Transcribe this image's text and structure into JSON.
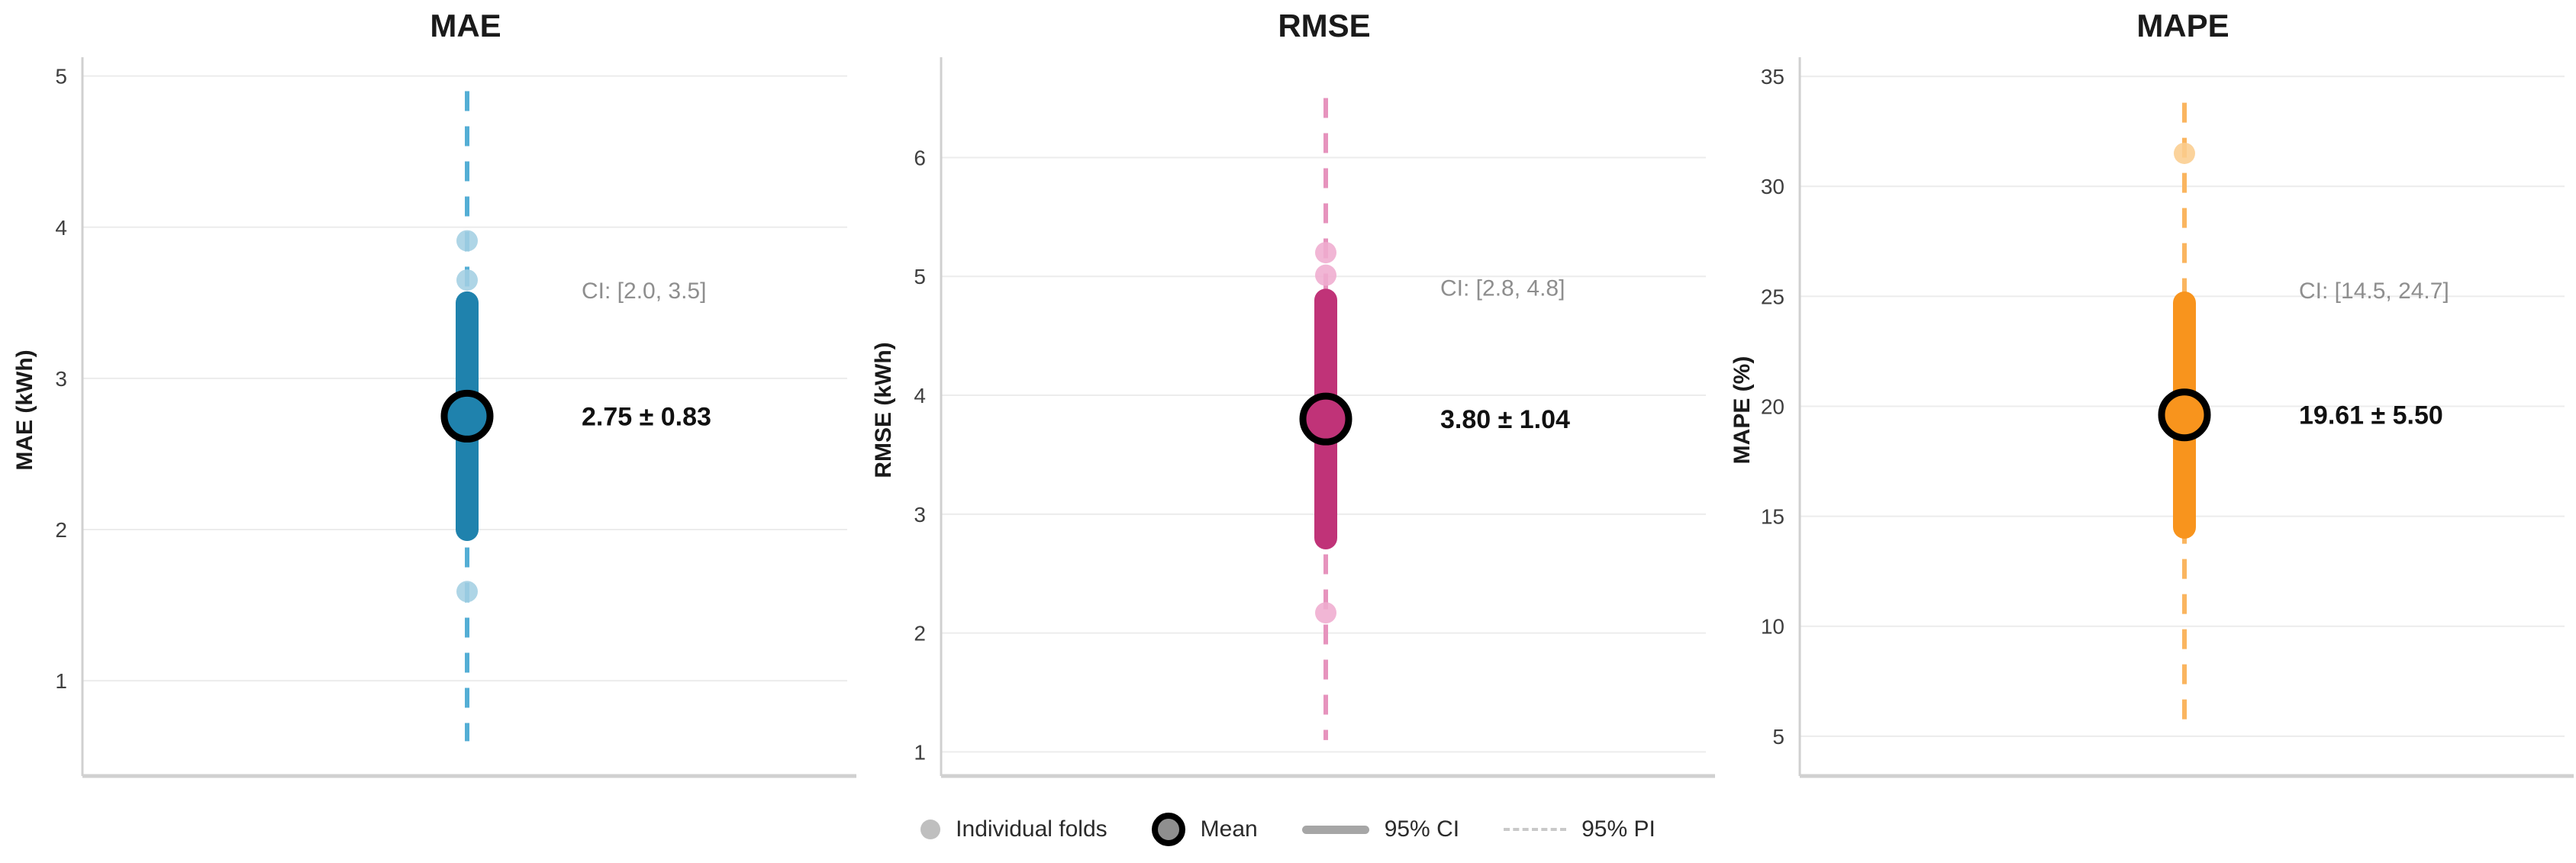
{
  "figure": {
    "background": "#ffffff",
    "grid_color": "#ececec",
    "spine_color": "#d0d0d0",
    "tick_label_color": "#3f3f3f",
    "title_color": "#1a1a1a",
    "ci_annotation_color": "#8e8e8e",
    "mean_annotation_color": "#111111"
  },
  "chart_data": [
    {
      "type": "scatter",
      "title": "MAE",
      "ylabel": "MAE (kWh)",
      "yticks": [
        1,
        2,
        3,
        4,
        5
      ],
      "ylim": [
        0.38,
        5.2
      ],
      "grid": true,
      "mean": 2.75,
      "sd": 0.83,
      "ci95": [
        2.0,
        3.5
      ],
      "pi95": [
        0.6,
        4.9
      ],
      "individual_folds_visible": [
        3.91,
        3.65,
        1.59
      ],
      "annotations": {
        "ci_label": "CI: [2.0, 3.5]",
        "mean_label": "2.75 ± 0.83"
      },
      "colors": {
        "main": "#1f82ad",
        "fold": "#a3cfe3",
        "dash": "#54aed5"
      }
    },
    {
      "type": "scatter",
      "title": "RMSE",
      "ylabel": "RMSE (kWh)",
      "yticks": [
        1,
        2,
        3,
        4,
        5,
        6
      ],
      "ylim": [
        0.81,
        6.94
      ],
      "grid": true,
      "mean": 3.8,
      "sd": 1.04,
      "ci95": [
        2.8,
        4.8
      ],
      "pi95": [
        1.1,
        6.5
      ],
      "individual_folds_visible": [
        5.2,
        5.01,
        2.17
      ],
      "annotations": {
        "ci_label": "CI: [2.8, 4.8]",
        "mean_label": "3.80 ± 1.04"
      },
      "colors": {
        "main": "#c03378",
        "fold": "#efaccf",
        "dash": "#e693bd"
      }
    },
    {
      "type": "scatter",
      "title": "MAPE",
      "ylabel": "MAPE (%)",
      "yticks": [
        5,
        10,
        15,
        20,
        25,
        30,
        35
      ],
      "ylim": [
        3.26,
        36.39
      ],
      "grid": true,
      "mean": 19.61,
      "sd": 5.5,
      "ci95": [
        14.5,
        24.7
      ],
      "pi95": [
        5.4,
        33.8
      ],
      "individual_folds_visible": [
        31.5
      ],
      "annotations": {
        "ci_label": "CI: [14.5, 24.7]",
        "mean_label": "19.61 ± 5.50"
      },
      "colors": {
        "main": "#f8941d",
        "fold": "#fbcd8e",
        "dash": "#fab55f"
      }
    }
  ],
  "legend": {
    "items": [
      {
        "icon": "fold-dot",
        "label": "Individual folds"
      },
      {
        "icon": "mean-dot",
        "label": "Mean"
      },
      {
        "icon": "ci-line",
        "label": "95% CI"
      },
      {
        "icon": "pi-line",
        "label": "95% PI"
      }
    ],
    "colors": {
      "fold": "#bfbfbf",
      "mean_fill": "#8f8f8f",
      "mean_ring": "#000000",
      "ci": "#a6a6a6",
      "pi": "#c9c9c9",
      "text": "#2b2b2b"
    }
  }
}
